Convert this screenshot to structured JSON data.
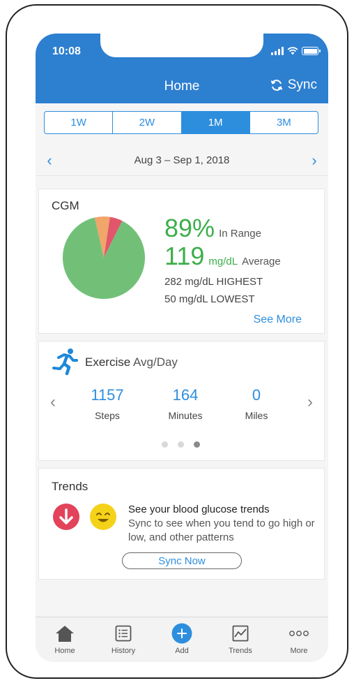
{
  "status_bar": {
    "time": "10:08"
  },
  "header": {
    "title": "Home",
    "sync_label": "Sync"
  },
  "range_tabs": [
    {
      "label": "1W",
      "active": false
    },
    {
      "label": "2W",
      "active": false
    },
    {
      "label": "1M",
      "active": true
    },
    {
      "label": "3M",
      "active": false
    }
  ],
  "date_range": "Aug 3 – Sep 1, 2018",
  "cgm": {
    "title": "CGM",
    "in_range_pct": "89%",
    "in_range_label": "In Range",
    "average_value": "119",
    "average_unit": "mg/dL",
    "average_label": "Average",
    "highest": "282 mg/dL HIGHEST",
    "lowest": "50 mg/dL LOWEST",
    "see_more": "See More",
    "chart_data": {
      "type": "pie",
      "slices": [
        {
          "label": "In Range",
          "value": 89,
          "color": "#72c078"
        },
        {
          "label": "High",
          "value": 6,
          "color": "#f0a56a"
        },
        {
          "label": "Low",
          "value": 5,
          "color": "#e2566b"
        }
      ]
    }
  },
  "exercise": {
    "title": "Exercise",
    "subtitle": "Avg/Day",
    "metrics": [
      {
        "value": "1157",
        "label": "Steps"
      },
      {
        "value": "164",
        "label": "Minutes"
      },
      {
        "value": "0",
        "label": "Miles"
      }
    ],
    "page_count": 3,
    "active_page": 3
  },
  "trends": {
    "title": "Trends",
    "heading": "See your blood glucose trends",
    "body": "Sync to see when you tend to go high or low, and other patterns",
    "button": "Sync Now"
  },
  "tab_bar": [
    {
      "label": "Home",
      "icon": "home-icon"
    },
    {
      "label": "History",
      "icon": "list-icon"
    },
    {
      "label": "Add",
      "icon": "add-icon"
    },
    {
      "label": "Trends",
      "icon": "chart-icon"
    },
    {
      "label": "More",
      "icon": "more-icon"
    }
  ],
  "colors": {
    "header": "#2d7fd0",
    "accent": "#2d8ede",
    "green": "#3dae4b",
    "red": "#e2435a",
    "yellow": "#f5d21a"
  }
}
